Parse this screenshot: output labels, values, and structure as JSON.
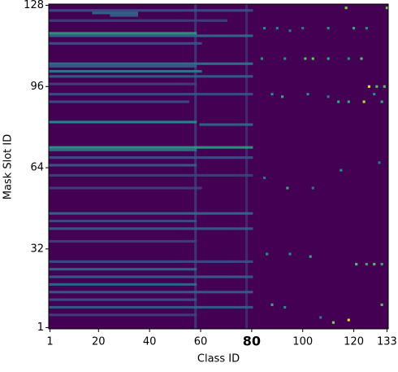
{
  "chart_data": {
    "type": "heatmap",
    "x_label": "Class ID",
    "y_label": "Mask Slot ID",
    "xlim": [
      0.5,
      133.5
    ],
    "ylim": [
      0.5,
      128.5
    ],
    "xticks": [
      1,
      20,
      40,
      60,
      80,
      100,
      120,
      133
    ],
    "highlight_xtick": 80,
    "yticks": [
      1,
      32,
      64,
      96,
      128
    ],
    "clim": [
      0,
      1
    ],
    "colormap": [
      "#440154",
      "#3b528b",
      "#21918c",
      "#5ec962",
      "#fde725"
    ],
    "background_color": "#440154",
    "columns": {
      "x": [
        58,
        78
      ],
      "y_start": [
        1,
        1
      ],
      "y_end": [
        128,
        128
      ],
      "values": [
        0.15,
        0.12
      ]
    },
    "streaks": {
      "y": [
        117,
        116,
        113,
        105,
        104,
        102,
        100,
        97,
        93,
        90,
        82,
        81,
        72,
        71,
        68,
        65,
        61,
        56,
        46,
        43,
        40,
        35,
        27,
        24,
        21,
        18,
        15,
        12,
        9,
        6,
        122,
        126,
        125,
        124
      ],
      "x_start": [
        1,
        1,
        1,
        1,
        1,
        1,
        1,
        1,
        1,
        1,
        1,
        60,
        1,
        1,
        1,
        1,
        1,
        1,
        1,
        1,
        1,
        1,
        1,
        1,
        1,
        1,
        1,
        1,
        1,
        1,
        1,
        1,
        18,
        25
      ],
      "x_end": [
        58,
        80,
        60,
        80,
        58,
        60,
        80,
        58,
        80,
        55,
        58,
        80,
        80,
        58,
        80,
        58,
        80,
        60,
        80,
        58,
        80,
        58,
        80,
        58,
        80,
        58,
        80,
        58,
        80,
        58,
        70,
        80,
        35,
        35
      ],
      "values": [
        0.55,
        0.35,
        0.25,
        0.4,
        0.3,
        0.45,
        0.3,
        0.2,
        0.25,
        0.25,
        0.5,
        0.35,
        0.55,
        0.4,
        0.25,
        0.3,
        0.2,
        0.2,
        0.35,
        0.25,
        0.3,
        0.2,
        0.25,
        0.35,
        0.3,
        0.35,
        0.3,
        0.25,
        0.3,
        0.2,
        0.2,
        0.25,
        0.35,
        0.3
      ]
    },
    "cells": {
      "x": [
        117,
        133,
        85,
        90,
        95,
        100,
        110,
        120,
        125,
        84,
        93,
        101,
        104,
        110,
        118,
        123,
        126,
        129,
        132,
        88,
        92,
        102,
        110,
        114,
        118,
        124,
        128,
        131,
        94,
        104,
        85,
        115,
        130,
        86,
        95,
        103,
        121,
        125,
        128,
        131,
        88,
        93,
        112,
        118,
        131,
        107
      ],
      "y": [
        127,
        127,
        119,
        119,
        118,
        119,
        119,
        119,
        119,
        107,
        107,
        107,
        107,
        107,
        107,
        107,
        96,
        96,
        96,
        93,
        92,
        93,
        92,
        90,
        90,
        90,
        93,
        90,
        56,
        56,
        60,
        63,
        66,
        30,
        30,
        29,
        26,
        26,
        26,
        26,
        10,
        9,
        3,
        4,
        10,
        5
      ],
      "values": [
        0.8,
        0.8,
        0.5,
        0.45,
        0.4,
        0.4,
        0.5,
        0.6,
        0.5,
        0.5,
        0.5,
        0.7,
        0.75,
        0.6,
        0.5,
        0.7,
        0.95,
        0.7,
        0.7,
        0.5,
        0.6,
        0.5,
        0.4,
        0.6,
        0.6,
        0.9,
        0.5,
        0.6,
        0.6,
        0.4,
        0.4,
        0.5,
        0.4,
        0.5,
        0.5,
        0.6,
        0.7,
        0.6,
        0.7,
        0.6,
        0.6,
        0.5,
        0.8,
        0.95,
        0.7,
        0.4
      ]
    }
  }
}
